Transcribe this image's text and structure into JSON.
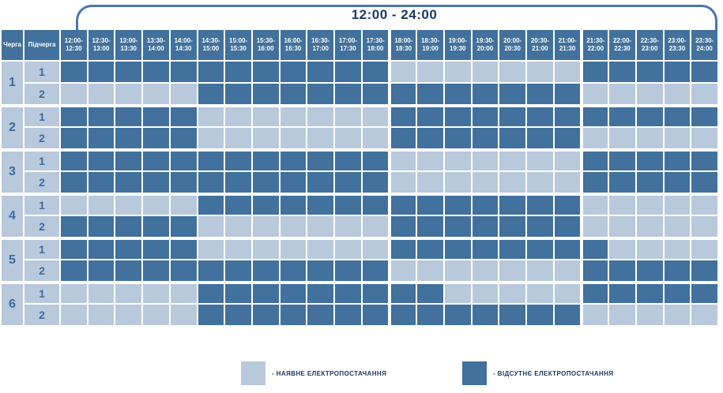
{
  "title": "12:00 - 24:00",
  "header": {
    "queue_col": "Черга",
    "subqueue_col": "Підчерга"
  },
  "colors": {
    "power_available": "#B9C9DC",
    "power_absent": "#41719C",
    "header_bg": "#41719C",
    "header_text": "#FFFFFF",
    "label_text": "#3A6B9D",
    "title_text": "#1F3864",
    "bracket_line": "#4A76AB",
    "grid_gap": "#FFFFFF"
  },
  "legend": {
    "items": [
      {
        "label": "- НАЯВНЕ ЕЛЕКТРОПОСТАЧАННЯ",
        "color_key": "power_available"
      },
      {
        "label": "- ВІДСУТНЄ ЕЛЕКТРОПОСТАЧАННЯ",
        "color_key": "power_absent"
      }
    ]
  },
  "chart_data": {
    "type": "heatmap",
    "title": "12:00 - 24:00",
    "x_labels": [
      "12:00-12:30",
      "12:30-13:00",
      "13:00-13:30",
      "13:30-14:00",
      "14:00-14:30",
      "14:30-15:00",
      "15:00-15:30",
      "15:30-16:00",
      "16:00-16:30",
      "16:30-17:00",
      "17:00-17:30",
      "17:30-18:00",
      "18:00-18:30",
      "18:30-19:00",
      "19:00-19:30",
      "19:30-20:00",
      "20:00-20:30",
      "20:30-21:00",
      "21:00-21:30",
      "21:30-22:00",
      "22:00-22:30",
      "22:30-23:00",
      "23:00-23:30",
      "23:30-24:00"
    ],
    "value_encoding": {
      "0": "наявне електропостачання",
      "1": "відсутнє електропостачання"
    },
    "row_groups": [
      {
        "queue": "1",
        "rows": [
          {
            "subqueue": "1",
            "outage": [
              1,
              1,
              1,
              1,
              1,
              1,
              1,
              1,
              1,
              1,
              1,
              1,
              0,
              0,
              0,
              0,
              0,
              0,
              0,
              1,
              1,
              1,
              1,
              1
            ]
          },
          {
            "subqueue": "2",
            "outage": [
              0,
              0,
              0,
              0,
              0,
              1,
              1,
              1,
              1,
              1,
              1,
              1,
              1,
              1,
              1,
              1,
              1,
              1,
              1,
              0,
              0,
              0,
              0,
              0
            ]
          }
        ]
      },
      {
        "queue": "2",
        "rows": [
          {
            "subqueue": "1",
            "outage": [
              1,
              1,
              1,
              1,
              1,
              0,
              0,
              0,
              0,
              0,
              0,
              0,
              1,
              1,
              1,
              1,
              1,
              1,
              1,
              1,
              1,
              1,
              1,
              1
            ]
          },
          {
            "subqueue": "2",
            "outage": [
              1,
              1,
              1,
              1,
              1,
              0,
              0,
              0,
              0,
              0,
              0,
              0,
              1,
              1,
              1,
              1,
              1,
              1,
              1,
              0,
              0,
              0,
              0,
              0
            ]
          }
        ]
      },
      {
        "queue": "3",
        "rows": [
          {
            "subqueue": "1",
            "outage": [
              1,
              1,
              1,
              1,
              1,
              1,
              1,
              1,
              1,
              1,
              1,
              1,
              0,
              0,
              0,
              0,
              0,
              0,
              0,
              1,
              1,
              1,
              1,
              1
            ]
          },
          {
            "subqueue": "2",
            "outage": [
              1,
              1,
              1,
              1,
              1,
              1,
              1,
              1,
              1,
              1,
              1,
              1,
              0,
              0,
              0,
              0,
              0,
              0,
              0,
              1,
              1,
              1,
              1,
              1
            ]
          }
        ]
      },
      {
        "queue": "4",
        "rows": [
          {
            "subqueue": "1",
            "outage": [
              0,
              0,
              0,
              0,
              0,
              1,
              1,
              1,
              1,
              1,
              1,
              1,
              1,
              1,
              1,
              1,
              1,
              1,
              1,
              0,
              0,
              0,
              0,
              0
            ]
          },
          {
            "subqueue": "2",
            "outage": [
              1,
              1,
              1,
              1,
              1,
              0,
              0,
              0,
              0,
              0,
              0,
              0,
              1,
              1,
              1,
              1,
              1,
              1,
              1,
              0,
              0,
              0,
              0,
              0
            ]
          }
        ]
      },
      {
        "queue": "5",
        "rows": [
          {
            "subqueue": "1",
            "outage": [
              1,
              1,
              1,
              1,
              1,
              0,
              0,
              0,
              0,
              0,
              0,
              0,
              1,
              1,
              1,
              1,
              1,
              1,
              1,
              1,
              0,
              0,
              0,
              0
            ]
          },
          {
            "subqueue": "2",
            "outage": [
              1,
              1,
              1,
              1,
              1,
              1,
              1,
              1,
              1,
              1,
              1,
              1,
              0,
              0,
              0,
              0,
              0,
              0,
              0,
              1,
              1,
              1,
              1,
              1
            ]
          }
        ]
      },
      {
        "queue": "6",
        "rows": [
          {
            "subqueue": "1",
            "outage": [
              0,
              0,
              0,
              0,
              0,
              1,
              1,
              1,
              1,
              1,
              1,
              1,
              1,
              1,
              0,
              0,
              0,
              0,
              0,
              1,
              1,
              1,
              1,
              1
            ]
          },
          {
            "subqueue": "2",
            "outage": [
              0,
              0,
              0,
              0,
              0,
              1,
              1,
              1,
              1,
              1,
              1,
              1,
              1,
              1,
              1,
              1,
              1,
              1,
              1,
              0,
              0,
              0,
              0,
              0
            ]
          }
        ]
      }
    ]
  }
}
